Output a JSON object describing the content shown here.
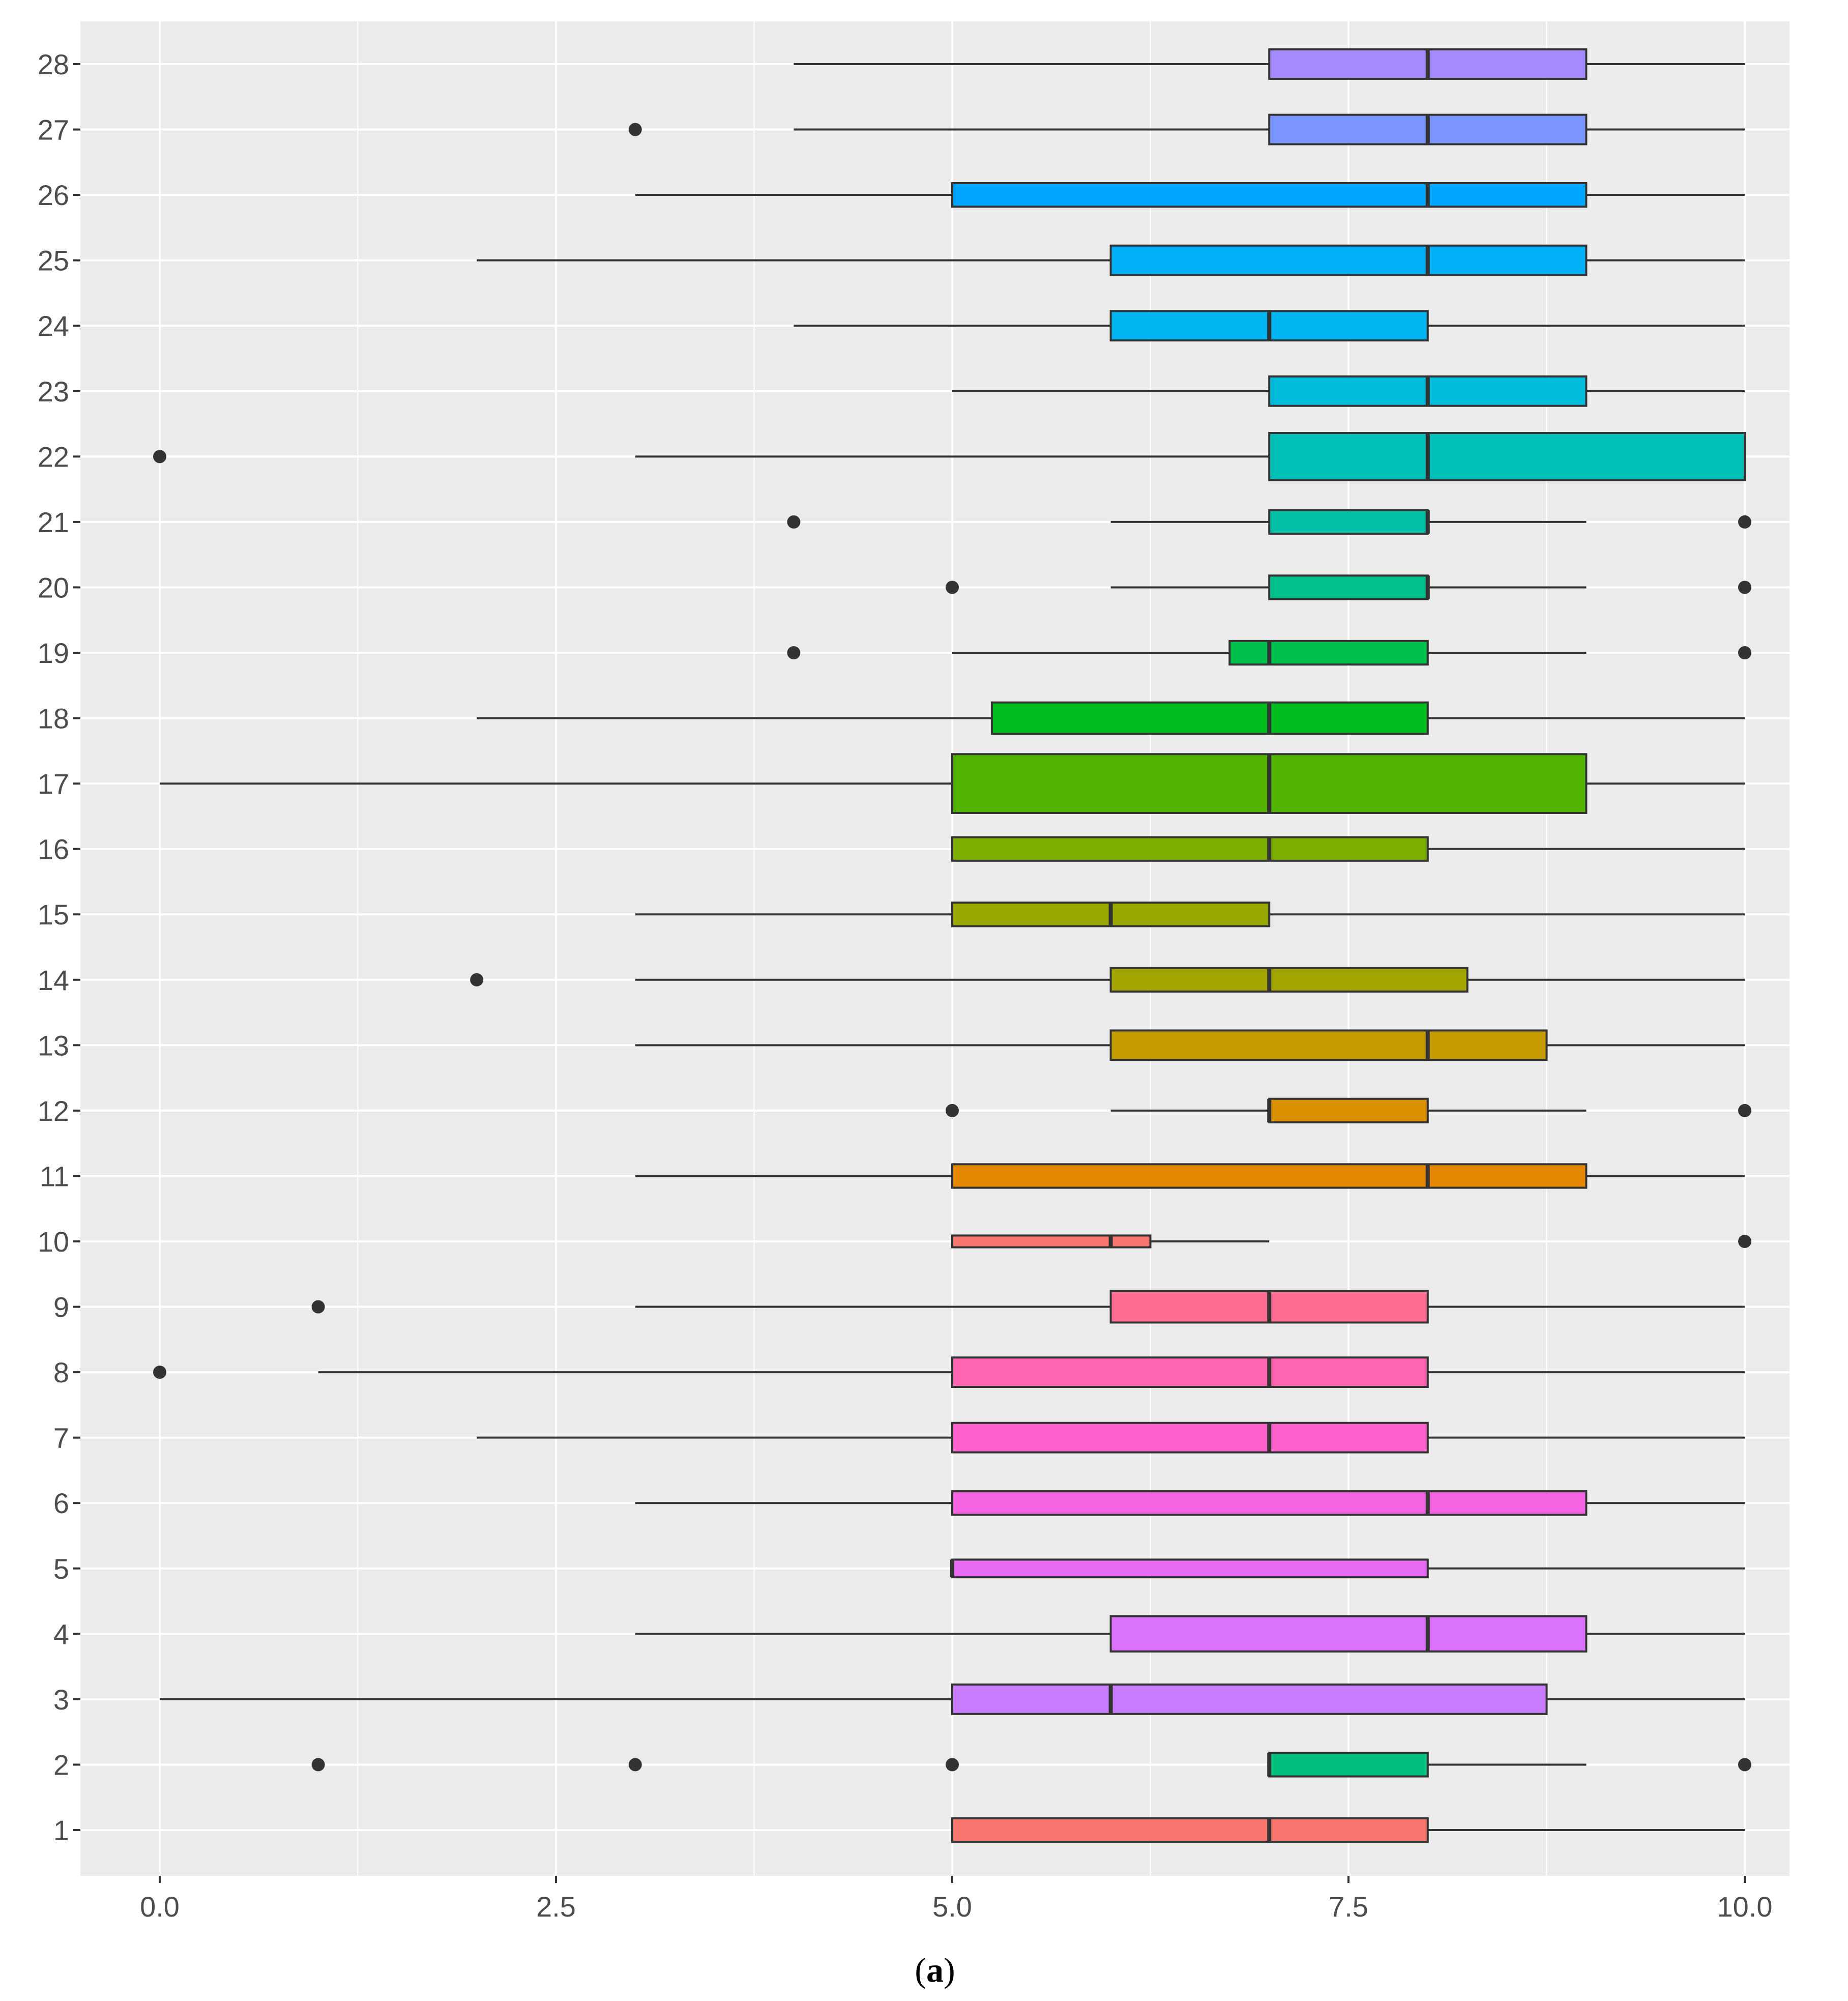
{
  "chart_data": {
    "type": "boxplot",
    "orientation": "horizontal",
    "title": "",
    "xlabel": "",
    "ylabel": "",
    "caption": {
      "open": "(",
      "letter": "a",
      "close": ")"
    },
    "xlim": [
      -0.5,
      10.5
    ],
    "xticks": [
      0,
      2.5,
      5,
      7.5,
      10
    ],
    "xtick_labels": [
      "0.0",
      "2.5",
      "5.0",
      "7.5",
      "10.0"
    ],
    "categories": [
      "1",
      "2",
      "3",
      "4",
      "5",
      "6",
      "7",
      "8",
      "9",
      "10",
      "11",
      "12",
      "13",
      "14",
      "15",
      "16",
      "17",
      "18",
      "19",
      "20",
      "21",
      "22",
      "23",
      "24",
      "25",
      "26",
      "27",
      "28"
    ],
    "series": [
      {
        "name": "1",
        "min": 5,
        "q1": 5,
        "median": 7,
        "q3": 8,
        "max": 10,
        "outliers": [],
        "width": 0.6,
        "color": "#F8766D"
      },
      {
        "name": "2",
        "min": 7,
        "q1": 7,
        "median": 7,
        "q3": 8,
        "max": 9,
        "outliers": [
          1,
          3,
          5,
          10
        ],
        "width": 0.6,
        "color": "#00BF7D"
      },
      {
        "name": "3",
        "min": 0,
        "q1": 5,
        "median": 6,
        "q3": 8.75,
        "max": 10,
        "outliers": [],
        "width": 0.75,
        "color": "#C77CFF"
      },
      {
        "name": "4",
        "min": 3,
        "q1": 6,
        "median": 8,
        "q3": 9,
        "max": 10,
        "outliers": [],
        "width": 0.9,
        "color": "#DB72FB"
      },
      {
        "name": "5",
        "min": 5,
        "q1": 5,
        "median": 5,
        "q3": 8,
        "max": 10,
        "outliers": [],
        "width": 0.45,
        "color": "#E76BF3"
      },
      {
        "name": "6",
        "min": 3,
        "q1": 5,
        "median": 8,
        "q3": 9,
        "max": 10,
        "outliers": [],
        "width": 0.6,
        "color": "#F564E3"
      },
      {
        "name": "7",
        "min": 2,
        "q1": 5,
        "median": 7,
        "q3": 8,
        "max": 10,
        "outliers": [],
        "width": 0.75,
        "color": "#FF61CC"
      },
      {
        "name": "8",
        "min": 1,
        "q1": 5,
        "median": 7,
        "q3": 8,
        "max": 10,
        "outliers": [
          0
        ],
        "width": 0.75,
        "color": "#FF64B0"
      },
      {
        "name": "9",
        "min": 3,
        "q1": 6,
        "median": 7,
        "q3": 8,
        "max": 10,
        "outliers": [
          1
        ],
        "width": 0.8,
        "color": "#FF6C91"
      },
      {
        "name": "10",
        "min": 5,
        "q1": 5,
        "median": 6,
        "q3": 6.25,
        "max": 7,
        "outliers": [
          10
        ],
        "width": 0.3,
        "color": "#F8766D"
      },
      {
        "name": "11",
        "min": 3,
        "q1": 5,
        "median": 8,
        "q3": 9,
        "max": 10,
        "outliers": [],
        "width": 0.6,
        "color": "#E58700"
      },
      {
        "name": "12",
        "min": 6,
        "q1": 7,
        "median": 7,
        "q3": 8,
        "max": 9,
        "outliers": [
          5,
          10
        ],
        "width": 0.6,
        "color": "#D89000"
      },
      {
        "name": "13",
        "min": 3,
        "q1": 6,
        "median": 8,
        "q3": 8.75,
        "max": 10,
        "outliers": [],
        "width": 0.75,
        "color": "#C49A00"
      },
      {
        "name": "14",
        "min": 3,
        "q1": 6,
        "median": 7,
        "q3": 8.25,
        "max": 10,
        "outliers": [
          2
        ],
        "width": 0.6,
        "color": "#A3A500"
      },
      {
        "name": "15",
        "min": 3,
        "q1": 5,
        "median": 6,
        "q3": 7,
        "max": 10,
        "outliers": [],
        "width": 0.6,
        "color": "#99A800"
      },
      {
        "name": "16",
        "min": 5,
        "q1": 5,
        "median": 7,
        "q3": 8,
        "max": 10,
        "outliers": [],
        "width": 0.6,
        "color": "#7CAE00"
      },
      {
        "name": "17",
        "min": 0,
        "q1": 5,
        "median": 7,
        "q3": 9,
        "max": 10,
        "outliers": [],
        "width": 1.5,
        "color": "#53B400"
      },
      {
        "name": "18",
        "min": 2,
        "q1": 5.25,
        "median": 7,
        "q3": 8,
        "max": 10,
        "outliers": [],
        "width": 0.8,
        "color": "#00BC1F"
      },
      {
        "name": "19",
        "min": 5,
        "q1": 6.75,
        "median": 7,
        "q3": 8,
        "max": 9,
        "outliers": [
          4,
          10
        ],
        "width": 0.6,
        "color": "#00C04D"
      },
      {
        "name": "20",
        "min": 6,
        "q1": 7,
        "median": 8,
        "q3": 8,
        "max": 9,
        "outliers": [
          5,
          10
        ],
        "width": 0.6,
        "color": "#00C08B"
      },
      {
        "name": "21",
        "min": 6,
        "q1": 7,
        "median": 8,
        "q3": 8,
        "max": 9,
        "outliers": [
          4,
          10
        ],
        "width": 0.6,
        "color": "#00BFA4"
      },
      {
        "name": "22",
        "min": 3,
        "q1": 7,
        "median": 8,
        "q3": 10,
        "max": 10,
        "outliers": [
          0
        ],
        "width": 1.2,
        "color": "#00C0B8"
      },
      {
        "name": "23",
        "min": 5,
        "q1": 7,
        "median": 8,
        "q3": 9,
        "max": 10,
        "outliers": [],
        "width": 0.75,
        "color": "#00BBDA"
      },
      {
        "name": "24",
        "min": 4,
        "q1": 6,
        "median": 7,
        "q3": 8,
        "max": 10,
        "outliers": [],
        "width": 0.75,
        "color": "#00B4EF"
      },
      {
        "name": "25",
        "min": 2,
        "q1": 6,
        "median": 8,
        "q3": 9,
        "max": 10,
        "outliers": [],
        "width": 0.75,
        "color": "#00B0F6"
      },
      {
        "name": "26",
        "min": 3,
        "q1": 5,
        "median": 8,
        "q3": 9,
        "max": 10,
        "outliers": [],
        "width": 0.6,
        "color": "#00A5FF"
      },
      {
        "name": "27",
        "min": 4,
        "q1": 7,
        "median": 8,
        "q3": 9,
        "max": 10,
        "outliers": [
          3
        ],
        "width": 0.75,
        "color": "#7A95FF"
      },
      {
        "name": "28",
        "min": 4,
        "q1": 7,
        "median": 8,
        "q3": 9,
        "max": 10,
        "outliers": [],
        "width": 0.75,
        "color": "#A58AFF"
      }
    ],
    "colors": {
      "panel_background": "#EBEBEB",
      "grid": "#FFFFFF",
      "box_outline": "#333333",
      "outlier": "#333333",
      "tick_label": "#4D4D4D"
    }
  }
}
